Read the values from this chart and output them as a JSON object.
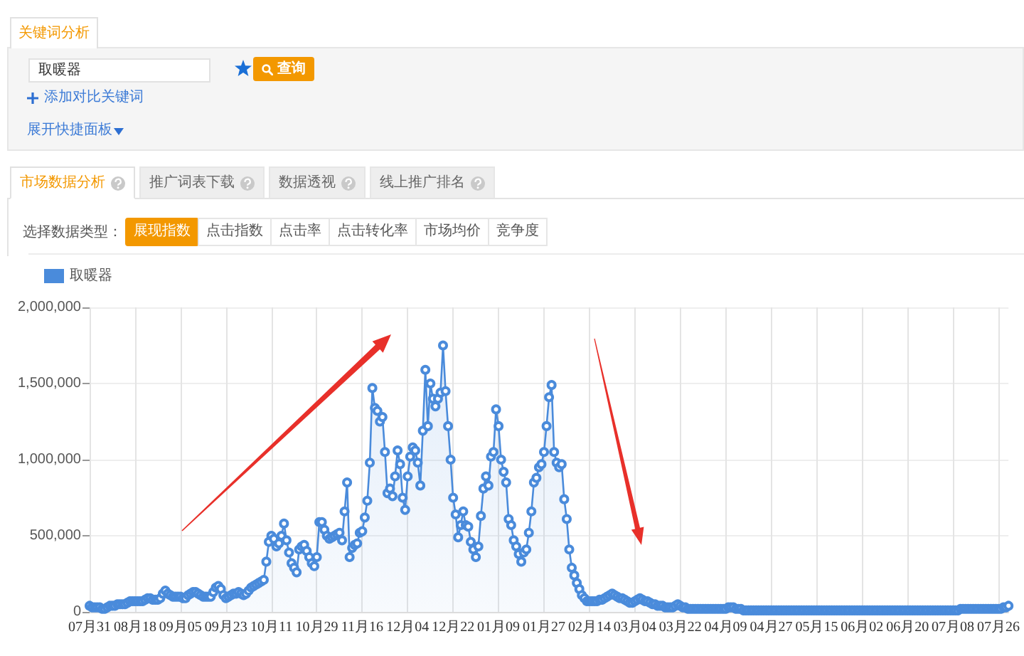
{
  "chart_data": [
    {
      "type": "other",
      "annotations": [
        "关键词分析",
        "取暖器",
        "查询",
        "添加对比关键词",
        "展开快捷面板",
        "市场数据分析",
        "推广词表下载",
        "数据透视",
        "线上推广排名",
        "选择数据类型：",
        "展现指数",
        "点击指数",
        "点击率",
        "点击转化率",
        "市场均价",
        "竞争度"
      ]
    },
    {
      "type": "area",
      "legend": "top left",
      "marker": "circle",
      "grid": true,
      "categories": [
        "07月31",
        null,
        null,
        null,
        null,
        null,
        null,
        null,
        null,
        null,
        null,
        null,
        null,
        null,
        null,
        null,
        null,
        null,
        "08月18",
        null,
        null,
        null,
        null,
        null,
        null,
        null,
        null,
        null,
        null,
        null,
        null,
        null,
        null,
        null,
        null,
        null,
        "09月05",
        null,
        null,
        null,
        null,
        null,
        null,
        null,
        null,
        null,
        null,
        null,
        null,
        null,
        null,
        null,
        null,
        null,
        "09月23",
        null,
        null,
        null,
        null,
        null,
        null,
        null,
        null,
        null,
        null,
        null,
        null,
        null,
        null,
        null,
        null,
        null,
        "10月11",
        null,
        null,
        null,
        null,
        null,
        null,
        null,
        null,
        null,
        null,
        null,
        null,
        null,
        null,
        null,
        null,
        null,
        "10月29",
        null,
        null,
        null,
        null,
        null,
        null,
        null,
        null,
        null,
        null,
        null,
        null,
        null,
        null,
        null,
        null,
        null,
        "11月16",
        null,
        null,
        null,
        null,
        null,
        null,
        null,
        null,
        null,
        null,
        null,
        null,
        null,
        null,
        null,
        null,
        null,
        "12月04",
        null,
        null,
        null,
        null,
        null,
        null,
        null,
        null,
        null,
        null,
        null,
        null,
        null,
        null,
        null,
        null,
        null,
        "12月22",
        null,
        null,
        null,
        null,
        null,
        null,
        null,
        null,
        null,
        null,
        null,
        null,
        null,
        null,
        null,
        null,
        null,
        "01月09",
        null,
        null,
        null,
        null,
        null,
        null,
        null,
        null,
        null,
        null,
        null,
        null,
        null,
        null,
        null,
        null,
        null,
        "01月27",
        null,
        null,
        null,
        null,
        null,
        null,
        null,
        null,
        null,
        null,
        null,
        null,
        null,
        null,
        null,
        null,
        null,
        "02月14",
        null,
        null,
        null,
        null,
        null,
        null,
        null,
        null,
        null,
        null,
        null,
        null,
        null,
        null,
        null,
        null,
        null,
        "03月04",
        null,
        null,
        null,
        null,
        null,
        null,
        null,
        null,
        null,
        null,
        null,
        null,
        null,
        null,
        null,
        null,
        null,
        "03月22",
        null,
        null,
        null,
        null,
        null,
        null,
        null,
        null,
        null,
        null,
        null,
        null,
        null,
        null,
        null,
        null,
        null,
        "04月09",
        null,
        null,
        null,
        null,
        null,
        null,
        null,
        null,
        null,
        null,
        null,
        null,
        null,
        null,
        null,
        null,
        null,
        "04月27",
        null,
        null,
        null,
        null,
        null,
        null,
        null,
        null,
        null,
        null,
        null,
        null,
        null,
        null,
        null,
        null,
        null,
        "05月15",
        null,
        null,
        null,
        null,
        null,
        null,
        null,
        null,
        null,
        null,
        null,
        null,
        null,
        null,
        null,
        null,
        null,
        "06月02",
        null,
        null,
        null,
        null,
        null,
        null,
        null,
        null,
        null,
        null,
        null,
        null,
        null,
        null,
        null,
        null,
        null,
        "06月20",
        null,
        null,
        null,
        null,
        null,
        null,
        null,
        null,
        null,
        null,
        null,
        null,
        null,
        null,
        null,
        null,
        null,
        "07月08",
        null,
        null,
        null,
        null,
        null,
        null,
        null,
        null,
        null,
        null,
        null,
        null,
        null,
        null,
        null,
        null,
        null,
        "07月26",
        null,
        null,
        null,
        null
      ],
      "ylim": [
        0,
        2000000
      ],
      "yticks": [
        0,
        {
          "value": 500000,
          "label": "500,000"
        },
        {
          "value": 1000000,
          "label": "1,000,000"
        },
        {
          "value": 1500000,
          "label": "1,500,000"
        },
        {
          "value": 2000000,
          "label": "2,000,000"
        }
      ],
      "series": [
        {
          "name": "取暖器",
          "color": "#4a8bdb",
          "values": [
            40000,
            30000,
            30000,
            30000,
            30000,
            20000,
            20000,
            30000,
            40000,
            40000,
            40000,
            50000,
            50000,
            50000,
            50000,
            60000,
            70000,
            70000,
            70000,
            70000,
            70000,
            70000,
            80000,
            90000,
            90000,
            80000,
            80000,
            80000,
            90000,
            120000,
            140000,
            120000,
            110000,
            100000,
            100000,
            100000,
            100000,
            90000,
            90000,
            110000,
            120000,
            130000,
            130000,
            120000,
            110000,
            100000,
            100000,
            100000,
            100000,
            130000,
            160000,
            170000,
            150000,
            110000,
            90000,
            100000,
            110000,
            120000,
            120000,
            130000,
            120000,
            110000,
            120000,
            140000,
            160000,
            170000,
            180000,
            190000,
            200000,
            210000,
            330000,
            460000,
            500000,
            480000,
            430000,
            450000,
            500000,
            580000,
            470000,
            390000,
            320000,
            290000,
            260000,
            410000,
            430000,
            440000,
            400000,
            360000,
            320000,
            300000,
            360000,
            590000,
            590000,
            540000,
            500000,
            480000,
            490000,
            500000,
            510000,
            520000,
            470000,
            660000,
            850000,
            360000,
            420000,
            440000,
            450000,
            520000,
            530000,
            620000,
            730000,
            980000,
            1470000,
            1340000,
            1320000,
            1250000,
            1280000,
            1050000,
            780000,
            810000,
            760000,
            890000,
            1060000,
            970000,
            750000,
            670000,
            890000,
            1020000,
            1080000,
            1060000,
            980000,
            830000,
            1190000,
            1590000,
            1220000,
            1500000,
            1400000,
            1350000,
            1400000,
            1440000,
            1750000,
            1450000,
            1220000,
            1000000,
            750000,
            640000,
            490000,
            570000,
            660000,
            570000,
            560000,
            460000,
            410000,
            360000,
            430000,
            630000,
            810000,
            890000,
            830000,
            1020000,
            1050000,
            1330000,
            1220000,
            1000000,
            920000,
            850000,
            610000,
            570000,
            470000,
            430000,
            380000,
            330000,
            390000,
            410000,
            520000,
            660000,
            850000,
            880000,
            950000,
            970000,
            1050000,
            1220000,
            1410000,
            1490000,
            1050000,
            980000,
            950000,
            970000,
            740000,
            610000,
            410000,
            290000,
            240000,
            190000,
            150000,
            110000,
            90000,
            70000,
            70000,
            70000,
            70000,
            70000,
            80000,
            80000,
            90000,
            100000,
            110000,
            120000,
            110000,
            100000,
            90000,
            90000,
            80000,
            70000,
            60000,
            60000,
            70000,
            80000,
            90000,
            80000,
            70000,
            70000,
            60000,
            50000,
            50000,
            40000,
            40000,
            40000,
            30000,
            30000,
            30000,
            30000,
            40000,
            50000,
            40000,
            30000,
            30000,
            20000,
            20000,
            20000,
            20000,
            20000,
            20000,
            20000,
            20000,
            20000,
            20000,
            20000,
            20000,
            20000,
            20000,
            20000,
            20000,
            30000,
            30000,
            30000,
            20000,
            20000,
            20000,
            10000,
            10000,
            10000,
            10000,
            10000,
            10000,
            10000,
            10000,
            10000,
            10000,
            10000,
            10000,
            10000,
            10000,
            10000,
            10000,
            10000,
            10000,
            10000,
            10000,
            10000,
            10000,
            10000,
            10000,
            10000,
            10000,
            10000,
            10000,
            10000,
            10000,
            10000,
            10000,
            10000,
            10000,
            10000,
            10000,
            10000,
            10000,
            10000,
            10000,
            10000,
            10000,
            10000,
            10000,
            10000,
            10000,
            10000,
            10000,
            10000,
            10000,
            10000,
            10000,
            10000,
            10000,
            10000,
            10000,
            10000,
            10000,
            10000,
            10000,
            10000,
            10000,
            10000,
            10000,
            10000,
            10000,
            10000,
            10000,
            10000,
            10000,
            10000,
            10000,
            10000,
            10000,
            10000,
            10000,
            10000,
            10000,
            10000,
            10000,
            10000,
            10000,
            10000,
            10000,
            10000,
            10000,
            20000,
            20000,
            20000,
            20000,
            20000,
            20000,
            20000,
            20000,
            20000,
            20000,
            20000,
            20000,
            20000,
            20000,
            20000,
            20000,
            20000,
            30000,
            30000,
            40000
          ]
        }
      ]
    }
  ]
}
